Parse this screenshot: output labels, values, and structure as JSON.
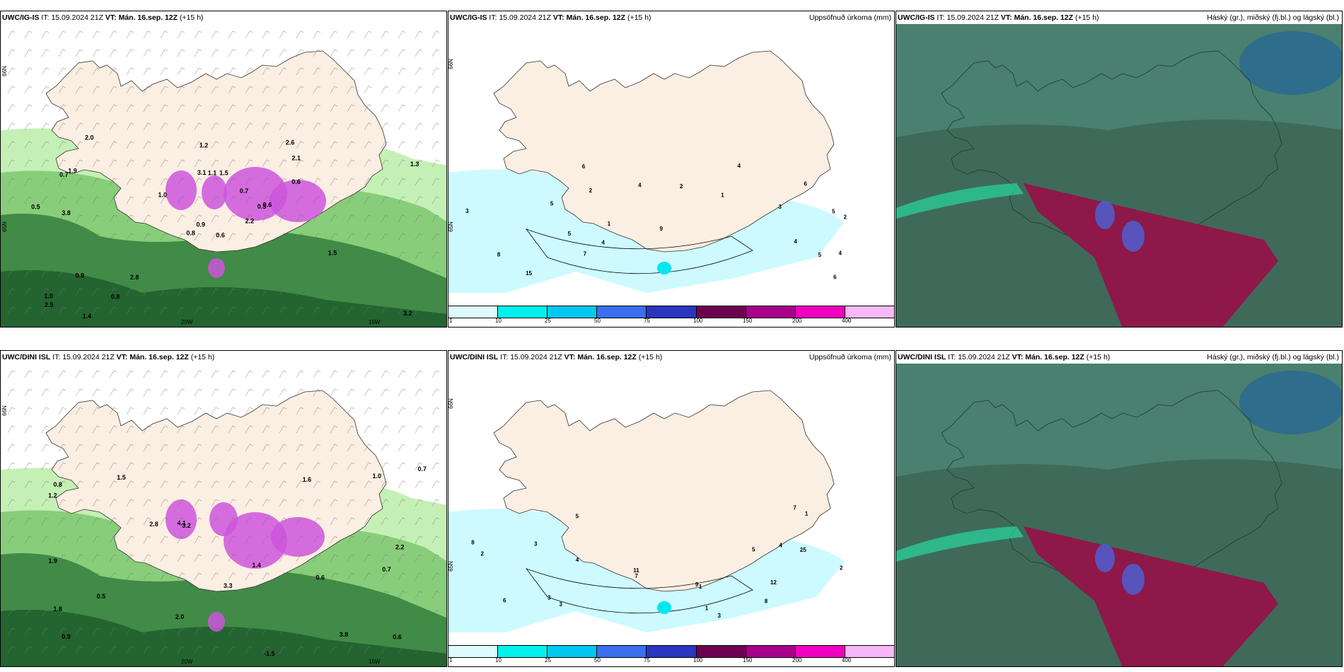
{
  "panels": [
    {
      "model": "UWC/IG-IS",
      "it_prefix": "IT:",
      "it_value": "15.09.2024 21Z",
      "vt_label": "VT:",
      "vt_value": "Mán. 16.sep. 12Z",
      "lead": "(+15 h)",
      "right_title": "",
      "kind": "precip-rate",
      "lat_labels": [
        "66N",
        "65N"
      ],
      "lon_labels": [
        "20W",
        "15W"
      ]
    },
    {
      "model": "UWC/IG-IS",
      "it_prefix": "IT:",
      "it_value": "15.09.2024 21Z",
      "vt_label": "VT:",
      "vt_value": "Mán. 16.sep. 12Z",
      "lead": "(+15 h)",
      "right_title": "Uppsöfnuð úrkoma (mm)",
      "kind": "accum",
      "lat_labels": [
        "66N",
        "65N"
      ],
      "lon_labels": []
    },
    {
      "model": "UWC/IG-IS",
      "it_prefix": "IT:",
      "it_value": "15.09.2024 21Z",
      "vt_label": "VT:",
      "vt_value": "Mán. 16.sep. 12Z",
      "lead": "(+15 h)",
      "right_title": "Háský (gr.), miðský (fj.bl.) og lágský (bl.)",
      "kind": "clouds",
      "lat_labels": [],
      "lon_labels": []
    },
    {
      "model": "UWC/DINI ISL",
      "it_prefix": "IT:",
      "it_value": "15.09.2024 21Z",
      "vt_label": "VT:",
      "vt_value": "Mán. 16.sep. 12Z",
      "lead": "(+15 h)",
      "right_title": "",
      "kind": "precip-rate",
      "lat_labels": [
        "66N"
      ],
      "lon_labels": [
        "20W",
        "15W"
      ]
    },
    {
      "model": "UWC/DINI ISL",
      "it_prefix": "IT:",
      "it_value": "15.09.2024 21Z",
      "vt_label": "VT:",
      "vt_value": "Mán. 16.sep. 12Z",
      "lead": "(+15 h)",
      "right_title": "Uppsöfnuð úrkoma (mm)",
      "kind": "accum",
      "lat_labels": [
        "66N",
        "65N"
      ],
      "lon_labels": []
    },
    {
      "model": "UWC/DINI ISL",
      "it_prefix": "IT:",
      "it_value": "15.09.2024 21Z",
      "vt_label": "VT:",
      "vt_value": "Mán. 16.sep. 12Z",
      "lead": "(+15 h)",
      "right_title": "Háský (gr.), miðský (fj.bl.) og lágský (bl.)",
      "kind": "clouds",
      "lat_labels": [],
      "lon_labels": []
    }
  ],
  "legend": {
    "ticks": [
      "1",
      "10",
      "25",
      "50",
      "75",
      "100",
      "150",
      "200",
      "400"
    ],
    "colors": [
      "#ddfbff",
      "#00f0ee",
      "#00c8f0",
      "#3a6ff0",
      "#2a35c0",
      "#6e0050",
      "#a8008a",
      "#f000c0",
      "#f7b8f7"
    ]
  },
  "precip_values": {
    "top": [
      "0.6",
      "0.7",
      "0.9",
      "1.0",
      "0.5",
      "2.8",
      "2.6",
      "1.5",
      "2.1",
      "2.2",
      "2.0",
      "3.2",
      "3.8",
      "1.3",
      "0.8",
      "0.6",
      "1.4",
      "3.1",
      "0.7",
      "0.9",
      "1.0",
      "2.5",
      "0.8",
      "1.1",
      "0.6",
      "1.5",
      "1.9",
      "1.2",
      "0.5"
    ],
    "bottom": [
      "0.6",
      "0.7",
      "0.9",
      "1.5",
      "3.2",
      "3.8",
      "1.8",
      "1.6",
      "2.8",
      "-1.5",
      "1.2",
      "1.9",
      "0.8",
      "0.6",
      "2.0",
      "2.2",
      "3.3",
      "1.4",
      "4.1",
      "0.5",
      "0.7",
      "1.0"
    ]
  },
  "accum_values": {
    "top": [
      "2",
      "5",
      "1",
      "2",
      "1",
      "4",
      "4",
      "4",
      "5",
      "6",
      "5",
      "4",
      "3",
      "7",
      "8",
      "9",
      "5",
      "3",
      "6",
      "4",
      "6",
      "2",
      "15"
    ],
    "bottom": [
      "3",
      "5",
      "3",
      "3",
      "4",
      "1",
      "2",
      "4",
      "7",
      "3",
      "6",
      "8",
      "11",
      "9",
      "5",
      "7",
      "2",
      "1",
      "12",
      "25",
      "8",
      "1"
    ]
  },
  "colors": {
    "land": "#fbeee2",
    "light_cyan": "#ccfaff",
    "cloud_dark": "#3f6a5a",
    "cloud_teal": "#4f8a78",
    "maroon": "#8e1849",
    "blue_patch": "#3160a0",
    "green_light": "#c5f0b5",
    "green_mid": "#7dc870",
    "green_dark": "#2e7a3a",
    "magenta": "#cc55dd"
  }
}
